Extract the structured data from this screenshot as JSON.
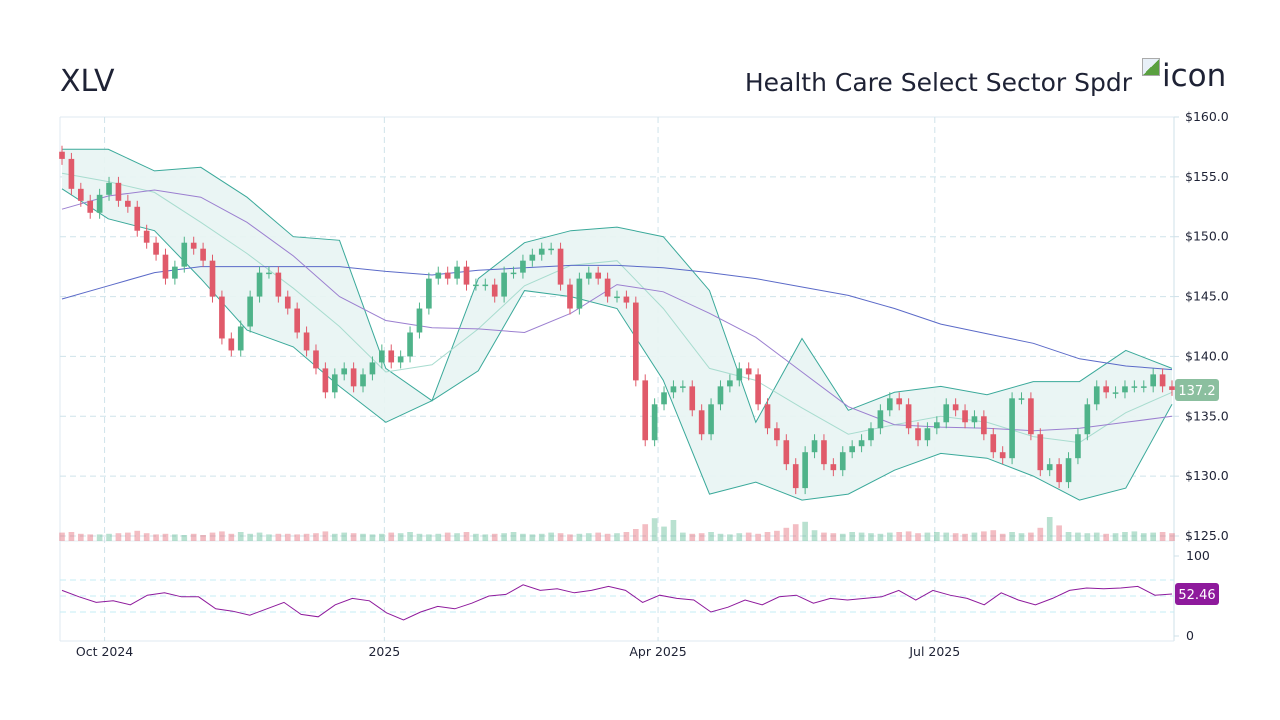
{
  "header": {
    "ticker": "XLV",
    "name": "Health Care Select Sector Spdr",
    "logo_alt": "icon"
  },
  "colors": {
    "up": "#4fb38a",
    "down": "#e05a6a",
    "band": "#3aa99a",
    "band_fill": "#e8f4f3",
    "band_mid": "#a8dccf",
    "ma50": "#9b7fd0",
    "ma200": "#5b6ac8",
    "rsi": "#8e1a9c",
    "grid": "#cfe3ea"
  },
  "chart_data": [
    {
      "type": "candlestick",
      "xlim": [
        "2024-09-17",
        "2025-09-17"
      ],
      "ylim": [
        125,
        160
      ],
      "grid": true,
      "y_ticks": [
        "$160.0",
        "$155.0",
        "$150.0",
        "$145.0",
        "$140.0",
        "$135.0",
        "$130.0",
        "$125.0"
      ],
      "y_tick_values": [
        160,
        155,
        150,
        145,
        140,
        135,
        130,
        125
      ],
      "x_ticks": [
        {
          "label": "Oct 2024",
          "date": "2024-10-01"
        },
        {
          "label": "2025",
          "date": "2025-01-01"
        },
        {
          "label": "Apr 2025",
          "date": "2025-04-01"
        },
        {
          "label": "Jul 2025",
          "date": "2025-07-01"
        }
      ],
      "last_price_label": "137.2",
      "last_price": 137.2,
      "close": [
        156.5,
        154,
        153,
        152,
        153.5,
        154.5,
        153,
        152.5,
        150.5,
        149.5,
        148.5,
        146.5,
        147.5,
        149.5,
        149,
        148,
        145,
        141.5,
        140.5,
        142.5,
        145,
        147,
        147,
        145,
        144,
        142,
        140.5,
        139,
        137,
        138.5,
        139,
        137.5,
        138.5,
        139.5,
        140.5,
        139.5,
        140,
        142,
        144,
        146.5,
        147,
        146.5,
        147.5,
        146,
        146,
        146,
        145,
        147,
        147,
        148,
        148.5,
        149,
        149,
        146,
        144,
        146.5,
        147,
        146.5,
        145,
        145,
        144.5,
        138,
        133,
        136,
        137,
        137.5,
        137.5,
        135.5,
        133.5,
        136,
        137.5,
        138,
        139,
        138.5,
        136,
        134,
        133,
        131,
        129,
        132,
        133,
        131,
        130.5,
        132,
        132.5,
        133,
        134,
        135.5,
        136.5,
        136,
        134,
        133,
        134,
        134.5,
        136,
        135.5,
        134.5,
        135,
        133.5,
        132,
        131.5,
        136.5,
        136.5,
        133.5,
        130.5,
        131,
        129.5,
        131.5,
        133.5,
        136,
        137.5,
        137,
        137,
        137.5,
        137.5,
        137.5,
        138.5,
        137.5,
        137.2
      ],
      "volume": [
        14,
        15,
        12,
        11,
        11,
        12,
        13,
        14,
        17,
        13,
        11,
        12,
        11,
        10,
        12,
        10,
        14,
        16,
        12,
        15,
        12,
        14,
        11,
        12,
        12,
        11,
        12,
        13,
        16,
        12,
        14,
        13,
        12,
        11,
        12,
        14,
        13,
        15,
        12,
        11,
        12,
        14,
        13,
        15,
        12,
        11,
        12,
        13,
        15,
        12,
        11,
        12,
        14,
        13,
        11,
        12,
        13,
        14,
        12,
        13,
        15,
        20,
        28,
        38,
        24,
        35,
        14,
        12,
        13,
        15,
        12,
        11,
        13,
        14,
        12,
        15,
        17,
        22,
        28,
        32,
        18,
        14,
        13,
        12,
        15,
        14,
        13,
        12,
        14,
        15,
        16,
        13,
        14,
        15,
        14,
        13,
        12,
        14,
        16,
        18,
        12,
        15,
        13,
        14,
        22,
        40,
        26,
        15,
        14,
        13,
        14,
        12,
        13,
        15,
        16,
        13,
        14,
        15,
        13
      ],
      "bollinger_upper": [
        157.3,
        157.3,
        155.5,
        155.8,
        153.3,
        150,
        149.7,
        139,
        136.3,
        146.5,
        149.5,
        150.5,
        150.8,
        150,
        145.5,
        134.5,
        141.5,
        135.5,
        137,
        137.5,
        136.8,
        137.9,
        137.9,
        140.5,
        139
      ],
      "bollinger_lower": [
        154,
        151.5,
        150.5,
        146.5,
        142.2,
        140.8,
        137.5,
        134.5,
        136.3,
        138.8,
        145.5,
        145,
        144,
        138,
        128.5,
        129.5,
        128,
        128.5,
        130.5,
        131.9,
        131.5,
        130,
        128,
        129,
        136
      ],
      "bollinger_mid": [
        155.3,
        154.6,
        153.7,
        151.2,
        148.6,
        145.7,
        142.5,
        138.7,
        139.3,
        142.3,
        145.9,
        147.6,
        148,
        144,
        139,
        138,
        135.7,
        133.5,
        134.3,
        135,
        134.5,
        133.3,
        132.8,
        135.3,
        137
      ],
      "ma50": [
        152.3,
        153.4,
        153.9,
        153.3,
        151.2,
        148.4,
        145,
        143,
        142.4,
        142.3,
        142,
        143.6,
        146,
        145.4,
        143.6,
        141.6,
        138.7,
        135.8,
        134.3,
        134.1,
        134,
        133.8,
        134,
        134.5,
        135
      ],
      "ma200": [
        144.8,
        145.9,
        147,
        147.5,
        147.5,
        147.5,
        147.5,
        147.1,
        146.8,
        147.2,
        147.4,
        147.6,
        147.6,
        147.4,
        147,
        146.5,
        145.8,
        145.1,
        144,
        142.7,
        141.9,
        141.1,
        139.8,
        139.2,
        138.9
      ]
    },
    {
      "type": "line",
      "ylim": [
        0,
        100
      ],
      "y_ticks": [
        "100",
        "0"
      ],
      "y_tick_values": [
        100,
        0
      ],
      "reference_lines": [
        70,
        50,
        30
      ],
      "last_value_label": "52.46",
      "rsi": [
        57,
        49,
        42,
        44,
        39,
        51,
        54,
        49,
        49,
        34,
        31,
        26,
        34,
        42,
        27,
        24,
        39,
        47,
        44,
        29,
        20,
        30,
        37,
        34,
        41,
        50,
        52,
        64,
        57,
        59,
        54,
        57,
        62,
        57,
        42,
        51,
        47,
        45,
        30,
        36,
        45,
        39,
        49,
        51,
        41,
        47,
        45,
        47,
        49,
        57,
        45,
        57,
        51,
        47,
        39,
        54,
        45,
        39,
        47,
        57,
        60,
        59,
        60,
        62,
        51,
        52.46
      ]
    }
  ]
}
